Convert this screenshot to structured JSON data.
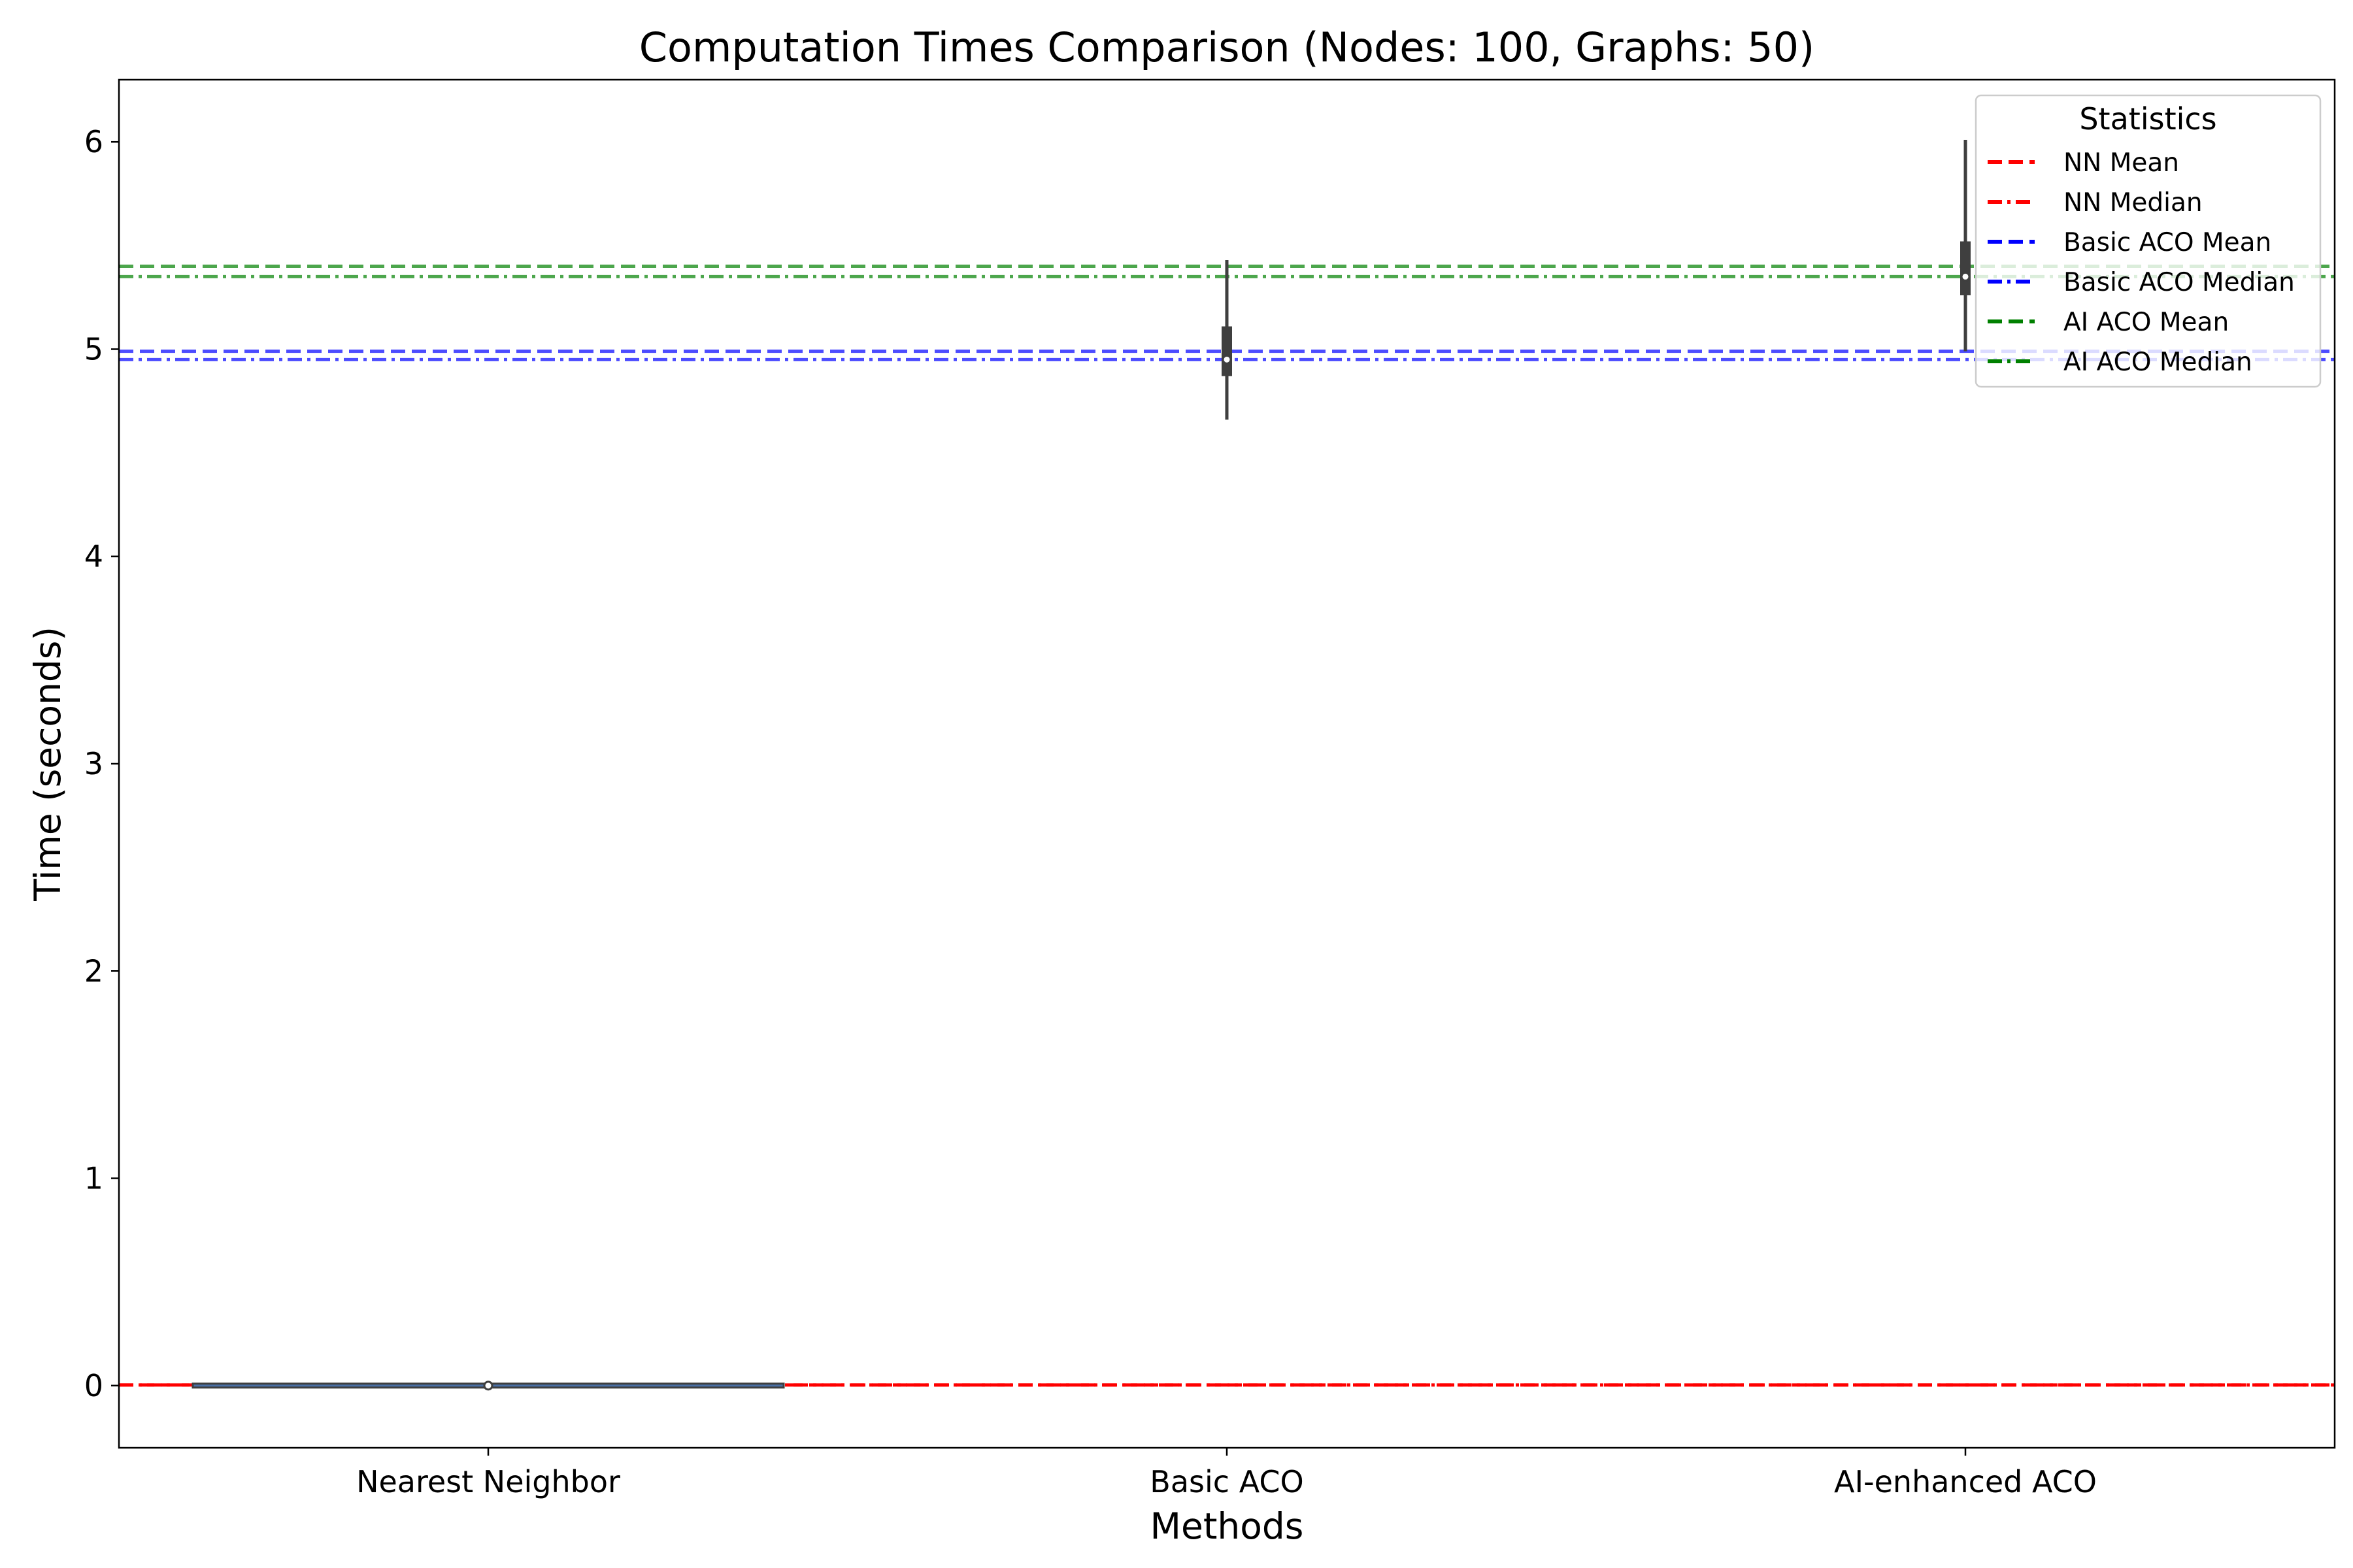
{
  "chart_data": {
    "type": "violin",
    "title": "Computation Times Comparison (Nodes: 100, Graphs: 50)",
    "xlabel": "Methods",
    "ylabel": "Time (seconds)",
    "ylim": [
      -0.3,
      6.3
    ],
    "yticks": [
      0,
      1,
      2,
      3,
      4,
      5,
      6
    ],
    "grid": false,
    "categories": [
      "Nearest Neighbor",
      "Basic ACO",
      "AI-enhanced ACO"
    ],
    "distributions": [
      {
        "category": "Nearest Neighbor",
        "min": 0.0,
        "q1": 0.0,
        "median": 0.0,
        "q3": 0.0,
        "max": 0.0,
        "kde_halfwidth": 0.4
      },
      {
        "category": "Basic ACO",
        "min": 4.66,
        "q1": 4.87,
        "median": 4.95,
        "q3": 5.11,
        "max": 5.43,
        "kde_halfwidth": 0.004
      },
      {
        "category": "AI-enhanced ACO",
        "min": 4.99,
        "q1": 5.26,
        "median": 5.35,
        "q3": 5.52,
        "max": 6.01,
        "kde_halfwidth": 0.004
      }
    ],
    "reference_lines": [
      {
        "name": "NN Mean",
        "value": 0.003,
        "color": "#ff0000",
        "style": "dashed"
      },
      {
        "name": "NN Median",
        "value": 0.003,
        "color": "#ff0000",
        "style": "dashdot"
      },
      {
        "name": "Basic ACO Mean",
        "value": 4.99,
        "color": "#0000ff",
        "style": "dashed"
      },
      {
        "name": "Basic ACO Median",
        "value": 4.95,
        "color": "#0000ff",
        "style": "dashdot"
      },
      {
        "name": "AI ACO Mean",
        "value": 5.4,
        "color": "#008000",
        "style": "dashed"
      },
      {
        "name": "AI ACO Median",
        "value": 5.35,
        "color": "#008000",
        "style": "dashdot"
      }
    ],
    "legend": {
      "title": "Statistics",
      "placement": "top-right",
      "entries": [
        "NN Mean",
        "NN Median",
        "Basic ACO Mean",
        "Basic ACO Median",
        "AI ACO Mean",
        "AI ACO Median"
      ]
    }
  }
}
